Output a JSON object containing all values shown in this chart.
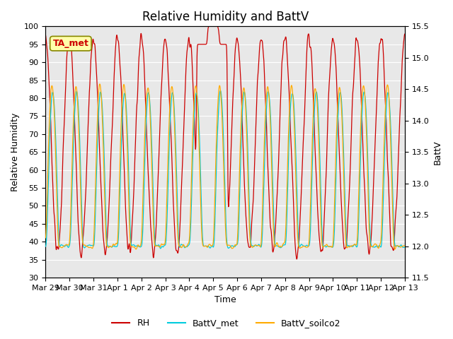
{
  "title": "Relative Humidity and BattV",
  "ylabel_left": "Relative Humidity",
  "ylabel_right": "BattV",
  "xlabel": "Time",
  "ylim_left": [
    30,
    100
  ],
  "ylim_right": [
    11.5,
    15.5
  ],
  "xtick_labels": [
    "Mar 29",
    "Mar 30",
    "Mar 31",
    "Apr 1",
    "Apr 2",
    "Apr 3",
    "Apr 4",
    "Apr 5",
    "Apr 6",
    "Apr 7",
    "Apr 8",
    "Apr 9",
    "Apr 10",
    "Apr 11",
    "Apr 12",
    "Apr 13"
  ],
  "rh_color": "#cc0000",
  "battv_met_color": "#00ccdd",
  "battv_soilco2_color": "#ffaa00",
  "legend_entries": [
    "RH",
    "BattV_met",
    "BattV_soilco2"
  ],
  "annotation_text": "TA_met",
  "annotation_color": "#cc0000",
  "annotation_bg": "#ffffaa",
  "bg_color": "#e8e8e8",
  "title_fontsize": 12,
  "axis_fontsize": 9,
  "tick_fontsize": 8,
  "legend_fontsize": 9
}
